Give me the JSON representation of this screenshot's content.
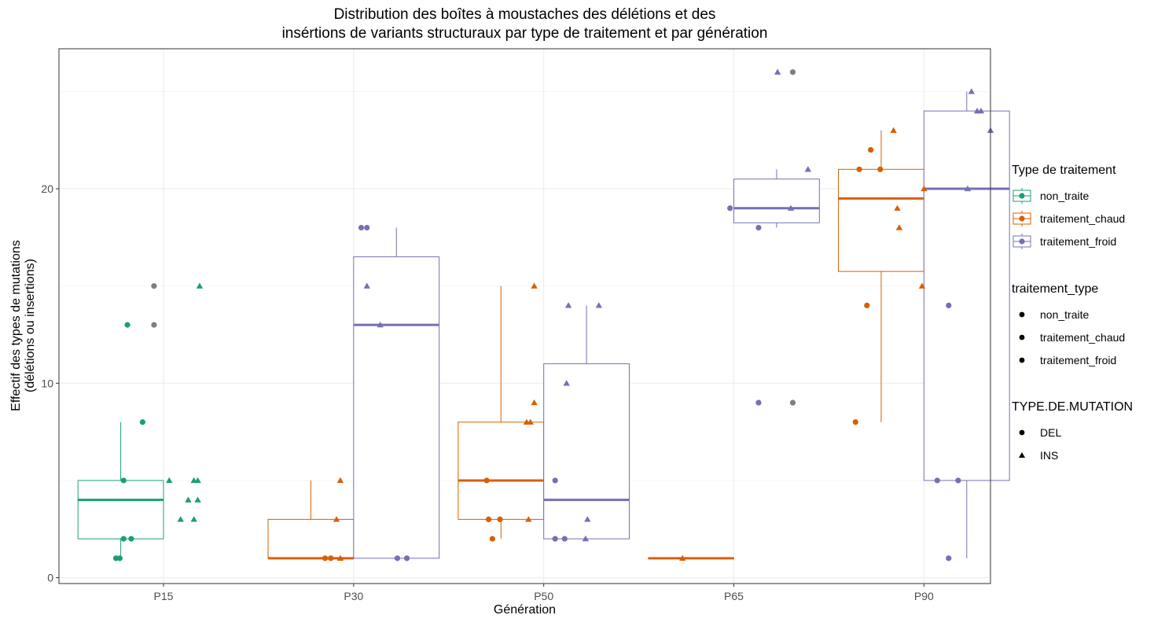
{
  "title": {
    "line1": "Distribution des boîtes à moustaches des délétions et des",
    "line2": "insértions de variants structuraux  par type de traitement et par génération"
  },
  "axes": {
    "xlabel": "Génération",
    "ylabel_line1": "Effectif des types de mutations",
    "ylabel_line2": "(délétions ou insertions)"
  },
  "legends": {
    "treatment": {
      "title": "Type de traitement",
      "items": [
        {
          "label": "non_traite",
          "color": "#1b9e77"
        },
        {
          "label": "traitement_chaud",
          "color": "#d95f02"
        },
        {
          "label": "traitement_froid",
          "color": "#7570b3"
        }
      ]
    },
    "treatment_type": {
      "title": "traitement_type",
      "items": [
        {
          "label": "non_traite",
          "shape": "circle"
        },
        {
          "label": "traitement_chaud",
          "shape": "circle"
        },
        {
          "label": "traitement_froid",
          "shape": "circle"
        }
      ]
    },
    "mutation": {
      "title": "TYPE.DE.MUTATION",
      "items": [
        {
          "label": "DEL",
          "shape": "circle"
        },
        {
          "label": "INS",
          "shape": "triangle"
        }
      ]
    }
  },
  "chart_data": {
    "type": "box",
    "x_categories": [
      "P15",
      "P30",
      "P50",
      "P65",
      "P90"
    ],
    "y_ticks": [
      0,
      10,
      20
    ],
    "ylim": [
      -0.3,
      27.2
    ],
    "grid": true,
    "legend_position": "right",
    "colors": {
      "non_traite": "#1b9e77",
      "traitement_chaud": "#d95f02",
      "traitement_froid": "#7570b3",
      "outlier": "#7f7f7f"
    },
    "boxes": [
      {
        "generation": "P15",
        "group": "non_traite",
        "slot": 0,
        "min": 1,
        "q1": 2,
        "median": 4,
        "q3": 5,
        "max": 8
      },
      {
        "generation": "P30",
        "group": "traitement_chaud",
        "slot": 0,
        "min": 1,
        "q1": 1,
        "median": 1,
        "q3": 3,
        "max": 5
      },
      {
        "generation": "P30",
        "group": "traitement_froid",
        "slot": 1,
        "min": 1,
        "q1": 1,
        "median": 13,
        "q3": 16.5,
        "max": 18
      },
      {
        "generation": "P50",
        "group": "traitement_chaud",
        "slot": 0,
        "min": 2,
        "q1": 3,
        "median": 5,
        "q3": 8,
        "max": 15
      },
      {
        "generation": "P50",
        "group": "traitement_froid",
        "slot": 1,
        "min": 2,
        "q1": 2,
        "median": 4,
        "q3": 11,
        "max": 14
      },
      {
        "generation": "P65",
        "group": "traitement_chaud",
        "slot": 0,
        "min": 1,
        "q1": 1,
        "median": 1,
        "q3": 1,
        "max": 1
      },
      {
        "generation": "P65",
        "group": "traitement_froid",
        "slot": 1,
        "min": 18,
        "q1": 18.25,
        "median": 19,
        "q3": 20.5,
        "max": 21
      },
      {
        "generation": "P90",
        "group": "traitement_chaud",
        "slot": 0,
        "min": 8,
        "q1": 15.75,
        "median": 19.5,
        "q3": 21,
        "max": 23
      },
      {
        "generation": "P90",
        "group": "traitement_froid",
        "slot": 1,
        "min": 1,
        "q1": 5,
        "median": 20,
        "q3": 24,
        "max": 25
      }
    ],
    "points": [
      {
        "gen": "P15",
        "dx": -0.25,
        "y": 1,
        "g": "non_traite",
        "m": "DEL"
      },
      {
        "gen": "P15",
        "dx": -0.23,
        "y": 1,
        "g": "non_traite",
        "m": "DEL"
      },
      {
        "gen": "P15",
        "dx": -0.19,
        "y": 13,
        "g": "non_traite",
        "m": "DEL"
      },
      {
        "gen": "P15",
        "dx": -0.21,
        "y": 5,
        "g": "non_traite",
        "m": "DEL"
      },
      {
        "gen": "P15",
        "dx": -0.21,
        "y": 2,
        "g": "non_traite",
        "m": "DEL"
      },
      {
        "gen": "P15",
        "dx": -0.17,
        "y": 2,
        "g": "non_traite",
        "m": "DEL"
      },
      {
        "gen": "P15",
        "dx": -0.11,
        "y": 8,
        "g": "non_traite",
        "m": "DEL"
      },
      {
        "gen": "P15",
        "dx": 0.03,
        "y": 5,
        "g": "non_traite",
        "m": "INS"
      },
      {
        "gen": "P15",
        "dx": 0.09,
        "y": 3,
        "g": "non_traite",
        "m": "INS"
      },
      {
        "gen": "P15",
        "dx": 0.13,
        "y": 4,
        "g": "non_traite",
        "m": "INS"
      },
      {
        "gen": "P15",
        "dx": 0.16,
        "y": 5,
        "g": "non_traite",
        "m": "INS"
      },
      {
        "gen": "P15",
        "dx": 0.18,
        "y": 5,
        "g": "non_traite",
        "m": "INS"
      },
      {
        "gen": "P15",
        "dx": 0.16,
        "y": 3,
        "g": "non_traite",
        "m": "INS"
      },
      {
        "gen": "P15",
        "dx": 0.18,
        "y": 4,
        "g": "non_traite",
        "m": "INS"
      },
      {
        "gen": "P15",
        "dx": 0.19,
        "y": 15,
        "g": "non_traite",
        "m": "INS"
      },
      {
        "gen": "P15",
        "dx": -0.05,
        "y": 15,
        "g": "outlier",
        "m": "DEL"
      },
      {
        "gen": "P15",
        "dx": -0.05,
        "y": 13,
        "g": "outlier",
        "m": "DEL"
      },
      {
        "gen": "P30",
        "dx": -0.15,
        "y": 1,
        "g": "traitement_chaud",
        "m": "DEL"
      },
      {
        "gen": "P30",
        "dx": -0.12,
        "y": 1,
        "g": "traitement_chaud",
        "m": "DEL"
      },
      {
        "gen": "P30",
        "dx": -0.09,
        "y": 3,
        "g": "traitement_chaud",
        "m": "INS"
      },
      {
        "gen": "P30",
        "dx": -0.07,
        "y": 1,
        "g": "traitement_chaud",
        "m": "INS"
      },
      {
        "gen": "P30",
        "dx": -0.07,
        "y": 5,
        "g": "traitement_chaud",
        "m": "INS"
      },
      {
        "gen": "P30",
        "dx": 0.04,
        "y": 18,
        "g": "traitement_froid",
        "m": "DEL"
      },
      {
        "gen": "P30",
        "dx": 0.07,
        "y": 18,
        "g": "traitement_froid",
        "m": "DEL"
      },
      {
        "gen": "P30",
        "dx": 0.23,
        "y": 1,
        "g": "traitement_froid",
        "m": "DEL"
      },
      {
        "gen": "P30",
        "dx": 0.28,
        "y": 1,
        "g": "traitement_froid",
        "m": "DEL"
      },
      {
        "gen": "P30",
        "dx": 0.07,
        "y": 15,
        "g": "traitement_froid",
        "m": "INS"
      },
      {
        "gen": "P30",
        "dx": 0.14,
        "y": 13,
        "g": "traitement_froid",
        "m": "INS"
      },
      {
        "gen": "P50",
        "dx": -0.3,
        "y": 5,
        "g": "traitement_chaud",
        "m": "DEL"
      },
      {
        "gen": "P50",
        "dx": -0.29,
        "y": 3,
        "g": "traitement_chaud",
        "m": "DEL"
      },
      {
        "gen": "P50",
        "dx": -0.23,
        "y": 3,
        "g": "traitement_chaud",
        "m": "DEL"
      },
      {
        "gen": "P50",
        "dx": -0.27,
        "y": 2,
        "g": "traitement_chaud",
        "m": "DEL"
      },
      {
        "gen": "P50",
        "dx": -0.08,
        "y": 3,
        "g": "traitement_chaud",
        "m": "INS"
      },
      {
        "gen": "P50",
        "dx": -0.09,
        "y": 8,
        "g": "traitement_chaud",
        "m": "INS"
      },
      {
        "gen": "P50",
        "dx": -0.07,
        "y": 8,
        "g": "traitement_chaud",
        "m": "INS"
      },
      {
        "gen": "P50",
        "dx": -0.05,
        "y": 9,
        "g": "traitement_chaud",
        "m": "INS"
      },
      {
        "gen": "P50",
        "dx": -0.05,
        "y": 15,
        "g": "traitement_chaud",
        "m": "INS"
      },
      {
        "gen": "P50",
        "dx": 0.06,
        "y": 5,
        "g": "traitement_froid",
        "m": "DEL"
      },
      {
        "gen": "P50",
        "dx": 0.06,
        "y": 2,
        "g": "traitement_froid",
        "m": "DEL"
      },
      {
        "gen": "P50",
        "dx": 0.11,
        "y": 2,
        "g": "traitement_froid",
        "m": "DEL"
      },
      {
        "gen": "P50",
        "dx": 0.12,
        "y": 10,
        "g": "traitement_froid",
        "m": "INS"
      },
      {
        "gen": "P50",
        "dx": 0.13,
        "y": 14,
        "g": "traitement_froid",
        "m": "INS"
      },
      {
        "gen": "P50",
        "dx": 0.22,
        "y": 2,
        "g": "traitement_froid",
        "m": "INS"
      },
      {
        "gen": "P50",
        "dx": 0.23,
        "y": 3,
        "g": "traitement_froid",
        "m": "INS"
      },
      {
        "gen": "P50",
        "dx": 0.29,
        "y": 14,
        "g": "traitement_froid",
        "m": "INS"
      },
      {
        "gen": "P65",
        "dx": -0.27,
        "y": 1,
        "g": "traitement_chaud",
        "m": "INS"
      },
      {
        "gen": "P65",
        "dx": -0.02,
        "y": 19,
        "g": "traitement_froid",
        "m": "DEL"
      },
      {
        "gen": "P65",
        "dx": 0.13,
        "y": 18,
        "g": "traitement_froid",
        "m": "DEL"
      },
      {
        "gen": "P65",
        "dx": 0.13,
        "y": 9,
        "g": "traitement_froid",
        "m": "DEL"
      },
      {
        "gen": "P65",
        "dx": 0.23,
        "y": 26,
        "g": "traitement_froid",
        "m": "INS"
      },
      {
        "gen": "P65",
        "dx": 0.3,
        "y": 19,
        "g": "traitement_froid",
        "m": "INS"
      },
      {
        "gen": "P65",
        "dx": 0.39,
        "y": 21,
        "g": "traitement_froid",
        "m": "INS"
      },
      {
        "gen": "P65",
        "dx": 0.31,
        "y": 26,
        "g": "outlier",
        "m": "DEL"
      },
      {
        "gen": "P65",
        "dx": 0.31,
        "y": 9,
        "g": "outlier",
        "m": "DEL"
      },
      {
        "gen": "P90",
        "dx": -0.36,
        "y": 8,
        "g": "traitement_chaud",
        "m": "DEL"
      },
      {
        "gen": "P90",
        "dx": -0.34,
        "y": 21,
        "g": "traitement_chaud",
        "m": "DEL"
      },
      {
        "gen": "P90",
        "dx": -0.3,
        "y": 14,
        "g": "traitement_chaud",
        "m": "DEL"
      },
      {
        "gen": "P90",
        "dx": -0.28,
        "y": 22,
        "g": "traitement_chaud",
        "m": "DEL"
      },
      {
        "gen": "P90",
        "dx": -0.23,
        "y": 21,
        "g": "traitement_chaud",
        "m": "DEL"
      },
      {
        "gen": "P90",
        "dx": -0.16,
        "y": 23,
        "g": "traitement_chaud",
        "m": "INS"
      },
      {
        "gen": "P90",
        "dx": -0.14,
        "y": 19,
        "g": "traitement_chaud",
        "m": "INS"
      },
      {
        "gen": "P90",
        "dx": -0.13,
        "y": 18,
        "g": "traitement_chaud",
        "m": "INS"
      },
      {
        "gen": "P90",
        "dx": -0.01,
        "y": 15,
        "g": "traitement_chaud",
        "m": "INS"
      },
      {
        "gen": "P90",
        "dx": 0.0,
        "y": 20,
        "g": "traitement_chaud",
        "m": "INS"
      },
      {
        "gen": "P90",
        "dx": 0.07,
        "y": 5,
        "g": "traitement_froid",
        "m": "DEL"
      },
      {
        "gen": "P90",
        "dx": 0.13,
        "y": 1,
        "g": "traitement_froid",
        "m": "DEL"
      },
      {
        "gen": "P90",
        "dx": 0.13,
        "y": 14,
        "g": "traitement_froid",
        "m": "DEL"
      },
      {
        "gen": "P90",
        "dx": 0.18,
        "y": 5,
        "g": "traitement_froid",
        "m": "DEL"
      },
      {
        "gen": "P90",
        "dx": 0.23,
        "y": 20,
        "g": "traitement_froid",
        "m": "INS"
      },
      {
        "gen": "P90",
        "dx": 0.25,
        "y": 25,
        "g": "traitement_froid",
        "m": "INS"
      },
      {
        "gen": "P90",
        "dx": 0.28,
        "y": 24,
        "g": "traitement_froid",
        "m": "INS"
      },
      {
        "gen": "P90",
        "dx": 0.3,
        "y": 24,
        "g": "traitement_froid",
        "m": "INS"
      },
      {
        "gen": "P90",
        "dx": 0.35,
        "y": 23,
        "g": "traitement_froid",
        "m": "INS"
      }
    ]
  }
}
